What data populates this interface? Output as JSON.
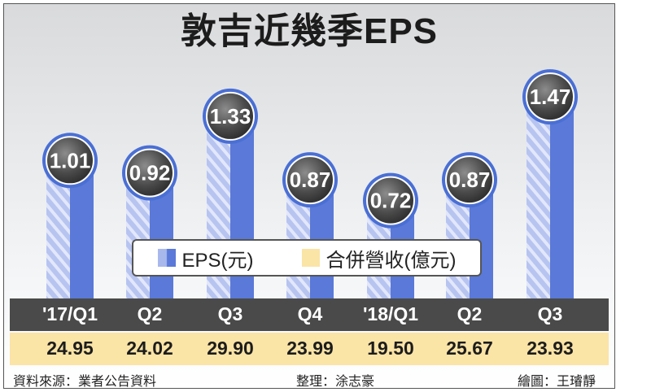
{
  "title": "敦吉近幾季EPS",
  "chart_data": {
    "type": "bar",
    "categories": [
      "'17/Q1",
      "Q2",
      "Q3",
      "Q4",
      "'18/Q1",
      "Q2",
      "Q3"
    ],
    "series": [
      {
        "name": "EPS(元)",
        "values": [
          1.01,
          0.92,
          1.33,
          0.87,
          0.72,
          0.87,
          1.47
        ]
      },
      {
        "name": "合併營收(億元)",
        "values": [
          24.95,
          24.02,
          29.9,
          23.99,
          19.5,
          25.67,
          23.93
        ]
      }
    ],
    "eps_labels": [
      "1.01",
      "0.92",
      "1.33",
      "0.87",
      "0.72",
      "0.87",
      "1.47"
    ],
    "revenue_labels": [
      "24.95",
      "24.02",
      "29.90",
      "23.99",
      "19.50",
      "25.67",
      "23.93"
    ],
    "colors": {
      "eps_light": "#a9b8ec",
      "eps_dark": "#5a79d8",
      "revenue_band": "#fae4a6",
      "category_band": "#4a4a4a"
    }
  },
  "legend": {
    "eps": "EPS(元)",
    "revenue": "合併營收(億元)"
  },
  "footer": {
    "source": "資料來源：業者公告資料",
    "editor": "整理：涂志豪",
    "illustrator": "繪圖：王璿靜"
  }
}
